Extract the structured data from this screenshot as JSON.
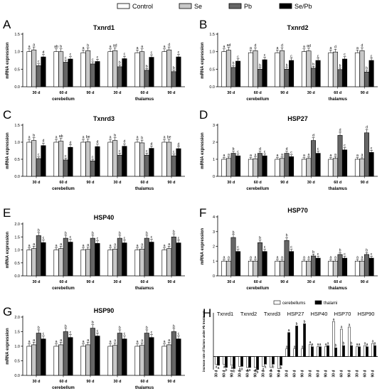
{
  "legend": [
    {
      "label": "Control",
      "color": "#ffffff"
    },
    {
      "label": "Se",
      "color": "#c8c8c8"
    },
    {
      "label": "Pb",
      "color": "#666666"
    },
    {
      "label": "Se/Pb",
      "color": "#000000"
    }
  ],
  "chart_data": [
    {
      "panel": "A",
      "type": "bar",
      "title": "Txnrd1",
      "ylabel": "mRNA expression",
      "ylim": [
        0,
        1.5
      ],
      "yticks": [
        "0.0",
        "0.5",
        "1.0",
        "1.5"
      ],
      "categories": [
        "30 d",
        "60 d",
        "90 d",
        "30 d",
        "60 d",
        "90 d"
      ],
      "groups": [
        "cerebellum",
        "thalamus"
      ],
      "series": [
        {
          "name": "Control",
          "values": [
            1.0,
            1.0,
            0.97,
            1.0,
            0.97,
            1.0
          ]
        },
        {
          "name": "Se",
          "values": [
            1.05,
            1.0,
            1.03,
            1.03,
            1.0,
            1.05
          ]
        },
        {
          "name": "Pb",
          "values": [
            0.6,
            0.7,
            0.65,
            0.57,
            0.47,
            0.43
          ]
        },
        {
          "name": "Se/Pb",
          "values": [
            0.85,
            0.79,
            0.72,
            0.8,
            0.84,
            0.85
          ]
        }
      ],
      "sig": [
        [
          "a",
          "a",
          "c",
          "d"
        ],
        [
          "ab",
          "b",
          "c",
          "c"
        ],
        [
          "a",
          "b",
          "c",
          "c"
        ],
        [
          "a",
          "ad",
          "b",
          "c"
        ],
        [
          "a",
          "a",
          "b",
          "c"
        ],
        [
          "a",
          "d",
          "b",
          "c"
        ]
      ]
    },
    {
      "panel": "B",
      "type": "bar",
      "title": "Txnrd2",
      "ylabel": "mRNA expression",
      "ylim": [
        0,
        1.5
      ],
      "yticks": [
        "0.0",
        "0.5",
        "1.0",
        "1.5"
      ],
      "categories": [
        "30 d",
        "60 d",
        "90 d",
        "30 d",
        "60 d",
        "90 d"
      ],
      "groups": [
        "cerebellum",
        "thalamus"
      ],
      "series": [
        {
          "name": "Control",
          "values": [
            1.0,
            0.97,
            0.97,
            1.0,
            0.97,
            0.97
          ]
        },
        {
          "name": "Se",
          "values": [
            1.04,
            1.03,
            1.03,
            1.02,
            0.99,
            1.03
          ]
        },
        {
          "name": "Pb",
          "values": [
            0.55,
            0.5,
            0.5,
            0.53,
            0.49,
            0.42
          ]
        },
        {
          "name": "Se/Pb",
          "values": [
            0.73,
            0.77,
            0.75,
            0.75,
            0.79,
            0.75
          ]
        }
      ],
      "sig": [
        [
          "a",
          "ad",
          "b",
          "c"
        ],
        [
          "a",
          "d",
          "b",
          "c"
        ],
        [
          "a",
          "d",
          "b",
          "c"
        ],
        [
          "a",
          "ad",
          "b",
          "c"
        ],
        [
          "a",
          "d",
          "b",
          "c"
        ],
        [
          "a",
          "d",
          "b",
          "c"
        ]
      ]
    },
    {
      "panel": "C",
      "type": "bar",
      "title": "Txnrd3",
      "ylabel": "mRNA expression",
      "ylim": [
        0,
        1.5
      ],
      "yticks": [
        "0.0",
        "0.5",
        "1.0",
        "1.5"
      ],
      "categories": [
        "30 d",
        "60 d",
        "90 d",
        "30 d",
        "60 d",
        "90 d"
      ],
      "groups": [
        "cerebellum",
        "thalamus"
      ],
      "series": [
        {
          "name": "Control",
          "values": [
            1.0,
            1.0,
            1.0,
            1.0,
            1.0,
            1.0
          ]
        },
        {
          "name": "Se",
          "values": [
            1.05,
            1.03,
            1.01,
            1.05,
            0.98,
            1.0
          ]
        },
        {
          "name": "Pb",
          "values": [
            0.52,
            0.48,
            0.45,
            0.62,
            0.62,
            0.6
          ]
        },
        {
          "name": "Se/Pb",
          "values": [
            0.9,
            0.85,
            0.87,
            0.88,
            0.82,
            0.81
          ]
        }
      ],
      "sig": [
        [
          "a",
          "b",
          "c",
          "d"
        ],
        [
          "a",
          "ab",
          "c",
          "d"
        ],
        [
          "a",
          "be",
          "c",
          "d"
        ],
        [
          "a",
          "b",
          "c",
          "d"
        ],
        [
          "a",
          "b",
          "c",
          "d"
        ],
        [
          "a",
          "be",
          "c",
          "d"
        ]
      ]
    },
    {
      "panel": "D",
      "type": "bar",
      "title": "HSP27",
      "ylabel": "mRNA expression",
      "ylim": [
        0,
        3
      ],
      "yticks": [
        "0",
        "1",
        "2",
        "3"
      ],
      "categories": [
        "30 d",
        "60 d",
        "90 d",
        "30 d",
        "60 d",
        "90 d"
      ],
      "groups": [
        "cerebellum",
        "thalamus"
      ],
      "series": [
        {
          "name": "Control",
          "values": [
            1.0,
            1.0,
            1.0,
            1.0,
            1.0,
            1.0
          ]
        },
        {
          "name": "Se",
          "values": [
            1.05,
            1.03,
            1.05,
            1.05,
            1.05,
            1.02
          ]
        },
        {
          "name": "Pb",
          "values": [
            1.35,
            1.35,
            1.35,
            2.1,
            2.4,
            2.55
          ]
        },
        {
          "name": "Se/Pb",
          "values": [
            1.2,
            1.2,
            1.15,
            1.35,
            1.55,
            1.4
          ]
        }
      ],
      "sig": [
        [
          "a",
          "a",
          "b",
          "c"
        ],
        [
          "a",
          "a",
          "d",
          "c"
        ],
        [
          "a",
          "a",
          "d",
          "c"
        ],
        [
          "a",
          "a",
          "d",
          "c"
        ],
        [
          "a",
          "a",
          "d",
          "c"
        ],
        [
          "a",
          "a",
          "d",
          "c"
        ]
      ]
    },
    {
      "panel": "E",
      "type": "bar",
      "title": "HSP40",
      "ylabel": "mRNA expression",
      "ylim": [
        0,
        2.0
      ],
      "yticks": [
        "0.0",
        "0.5",
        "1.0",
        "1.5",
        "2.0"
      ],
      "categories": [
        "30 d",
        "60 d",
        "90 d",
        "30 d",
        "60 d",
        "90 d"
      ],
      "groups": [
        "cerebellum",
        "thalamus"
      ],
      "series": [
        {
          "name": "Control",
          "values": [
            1.0,
            1.0,
            1.0,
            1.0,
            1.0,
            1.0
          ]
        },
        {
          "name": "Se",
          "values": [
            1.05,
            1.05,
            1.02,
            1.03,
            1.03,
            1.05
          ]
        },
        {
          "name": "Pb",
          "values": [
            1.55,
            1.45,
            1.45,
            1.45,
            1.45,
            1.5
          ]
        },
        {
          "name": "Se/Pb",
          "values": [
            1.28,
            1.3,
            1.25,
            1.27,
            1.3,
            1.27
          ]
        }
      ],
      "sig": [
        [
          "a",
          "a",
          "b",
          "c"
        ],
        [
          "a",
          "a",
          "b",
          "c"
        ],
        [
          "a",
          "a",
          "b",
          "c"
        ],
        [
          "a",
          "a",
          "b",
          "c"
        ],
        [
          "a",
          "a",
          "b",
          "c"
        ],
        [
          "a",
          "a",
          "b",
          "c"
        ]
      ]
    },
    {
      "panel": "F",
      "type": "bar",
      "title": "HSP70",
      "ylabel": "mRNA expression",
      "ylim": [
        0,
        4
      ],
      "yticks": [
        "0",
        "1",
        "2",
        "3",
        "4"
      ],
      "categories": [
        "30 d",
        "60 d",
        "90 d",
        "30 d",
        "60 d",
        "90 d"
      ],
      "groups": [
        "cerebellum",
        "thalamus"
      ],
      "series": [
        {
          "name": "Control",
          "values": [
            1.0,
            1.0,
            1.0,
            1.0,
            1.0,
            1.0
          ]
        },
        {
          "name": "Se",
          "values": [
            1.0,
            1.0,
            1.0,
            1.0,
            1.0,
            1.0
          ]
        },
        {
          "name": "Pb",
          "values": [
            2.6,
            2.25,
            2.4,
            1.35,
            1.45,
            1.45
          ]
        },
        {
          "name": "Se/Pb",
          "values": [
            1.65,
            1.65,
            1.65,
            1.2,
            1.2,
            1.2
          ]
        }
      ],
      "sig": [
        [
          "a",
          "a",
          "b",
          "c"
        ],
        [
          "a",
          "a",
          "b",
          "c"
        ],
        [
          "a",
          "a",
          "b",
          "c"
        ],
        [
          "a",
          "a",
          "b",
          "c"
        ],
        [
          "a",
          "a",
          "b",
          "c"
        ],
        [
          "a",
          "a",
          "b",
          "c"
        ]
      ]
    },
    {
      "panel": "G",
      "type": "bar",
      "title": "HSP90",
      "ylabel": "mRNA expression",
      "ylim": [
        0,
        2.0
      ],
      "yticks": [
        "0.0",
        "0.5",
        "1.0",
        "1.5",
        "2.0"
      ],
      "categories": [
        "30 d",
        "60 d",
        "90 d",
        "30 d",
        "60 d",
        "90 d"
      ],
      "groups": [
        "cerebellum",
        "thalamus"
      ],
      "series": [
        {
          "name": "Control",
          "values": [
            1.0,
            1.0,
            1.0,
            1.0,
            1.0,
            1.0
          ]
        },
        {
          "name": "Se",
          "values": [
            1.05,
            1.05,
            1.05,
            1.03,
            1.03,
            1.05
          ]
        },
        {
          "name": "Pb",
          "values": [
            1.45,
            1.5,
            1.62,
            1.45,
            1.45,
            1.5
          ]
        },
        {
          "name": "Se/Pb",
          "values": [
            1.25,
            1.3,
            1.35,
            1.25,
            1.3,
            1.25
          ]
        }
      ],
      "sig": [
        [
          "a",
          "a",
          "b",
          "c"
        ],
        [
          "a",
          "a",
          "b",
          "c"
        ],
        [
          "a",
          "a",
          "b",
          "c"
        ],
        [
          "a",
          "a",
          "b",
          "c"
        ],
        [
          "a",
          "a",
          "b",
          "c"
        ],
        [
          "a",
          "a",
          "b",
          "c"
        ]
      ]
    },
    {
      "panel": "H",
      "type": "bar",
      "ylabel": "increase rate of factors under Pb treatment",
      "ylim": [
        -0.6,
        2.0
      ],
      "factors": [
        "Txnrd1",
        "Txnrd2",
        "Txnrd3",
        "HSP27",
        "HSP40",
        "HSP70",
        "HSP90"
      ],
      "categories": [
        "30 d",
        "60 d",
        "90 d"
      ],
      "series": [
        {
          "name": "cerebellums",
          "color": "#ffffff",
          "values": [
            [
              -0.35,
              -0.35,
              -0.4
            ],
            [
              -0.45,
              -0.5,
              -0.5
            ],
            [
              -0.45,
              -0.5,
              -0.55
            ],
            [
              0.35,
              0.35,
              0.35
            ],
            [
              0.55,
              0.45,
              0.45
            ],
            [
              1.6,
              1.25,
              1.35
            ],
            [
              0.45,
              0.5,
              0.6
            ]
          ]
        },
        {
          "name": "thalami",
          "color": "#000000",
          "values": [
            [
              -0.4,
              -0.5,
              -0.55
            ],
            [
              -0.45,
              -0.5,
              -0.6
            ],
            [
              -0.35,
              -0.35,
              -0.4
            ],
            [
              1.1,
              1.4,
              1.5
            ],
            [
              0.45,
              0.45,
              0.5
            ],
            [
              0.4,
              0.5,
              0.5
            ],
            [
              0.45,
              0.45,
              0.5
            ]
          ]
        }
      ],
      "sig": [
        [
          [
            "a",
            "a"
          ],
          [
            "a",
            "b"
          ],
          [
            "b",
            "b"
          ]
        ],
        [
          [
            "a",
            "a"
          ],
          [
            "a",
            "a"
          ],
          [
            "a",
            "b"
          ]
        ],
        [
          [
            "a",
            "a"
          ],
          [
            "a",
            "b"
          ],
          [
            "a",
            "b"
          ]
        ],
        [
          [
            "a",
            "a"
          ],
          [
            "a",
            "b"
          ],
          [
            "a",
            "b"
          ]
        ],
        [
          [
            "a",
            "a"
          ],
          [
            "a",
            "a"
          ],
          [
            "a",
            "a"
          ]
        ],
        [
          [
            "a",
            "b"
          ],
          [
            "a",
            "b"
          ],
          [
            "a",
            "b"
          ]
        ],
        [
          [
            "a",
            "a"
          ],
          [
            "a",
            "a"
          ],
          [
            "a",
            "a"
          ]
        ]
      ]
    }
  ]
}
